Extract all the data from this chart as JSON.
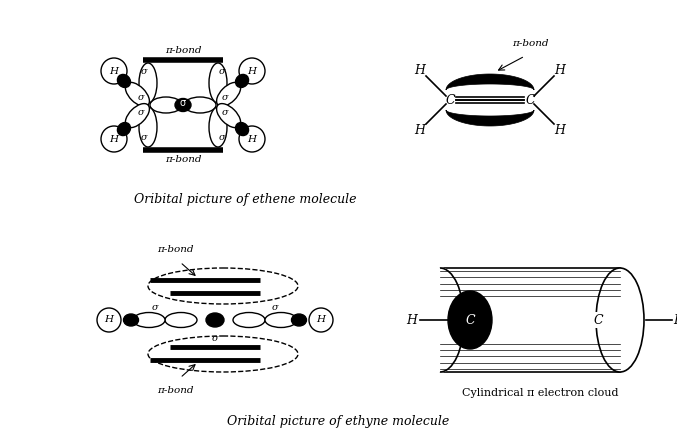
{
  "bg_color": "#ffffff",
  "title_ethene": "Oribital picture of ethene molecule",
  "title_ethyne": "Oribital picture of ethyne molecule",
  "cylinder_label": "Cylindrical π electron cloud",
  "fig_width": 6.77,
  "fig_height": 4.3,
  "dpi": 100
}
